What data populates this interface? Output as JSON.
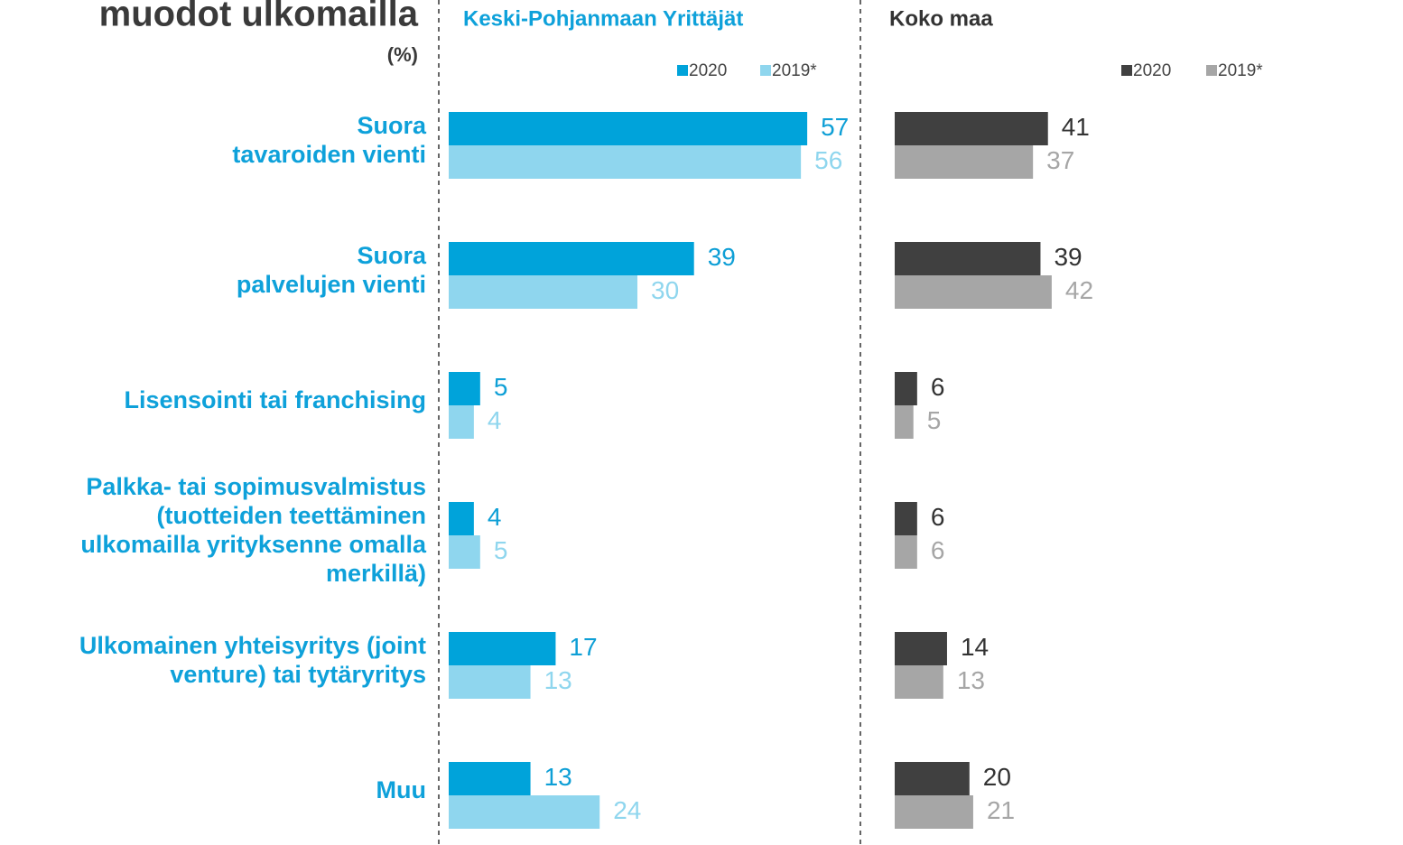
{
  "header": {
    "title": "muodot ulkomailla",
    "subtitle": "(%)"
  },
  "chart_data": [
    {
      "type": "bar",
      "orientation": "horizontal",
      "title": "Keski-Pohjanmaan Yrittäjät",
      "categories": [
        "Suora\ntavaroiden vienti",
        "Suora\npalvelujen vienti",
        "Lisensointi tai franchising",
        "Palkka- tai sopimusvalmistus\n(tuotteiden teettäminen\nulkomailla yrityksenne omalla\nmerkillä)",
        "Ulkomainen yhteisyritys (joint\nventure) tai tytäryritys",
        "Muu"
      ],
      "series": [
        {
          "name": "2020",
          "color": "#00a3da",
          "values": [
            57,
            39,
            5,
            4,
            17,
            13
          ]
        },
        {
          "name": "2019*",
          "color": "#8fd6ee",
          "values": [
            56,
            30,
            4,
            5,
            13,
            24
          ]
        }
      ],
      "xlim": [
        0,
        60
      ]
    },
    {
      "type": "bar",
      "orientation": "horizontal",
      "title": "Koko maa",
      "series": [
        {
          "name": "2020",
          "color": "#404040",
          "values": [
            41,
            39,
            6,
            6,
            14,
            20
          ]
        },
        {
          "name": "2019*",
          "color": "#a6a6a6",
          "values": [
            37,
            42,
            5,
            6,
            13,
            21
          ]
        }
      ],
      "xlim": [
        0,
        100
      ]
    }
  ]
}
